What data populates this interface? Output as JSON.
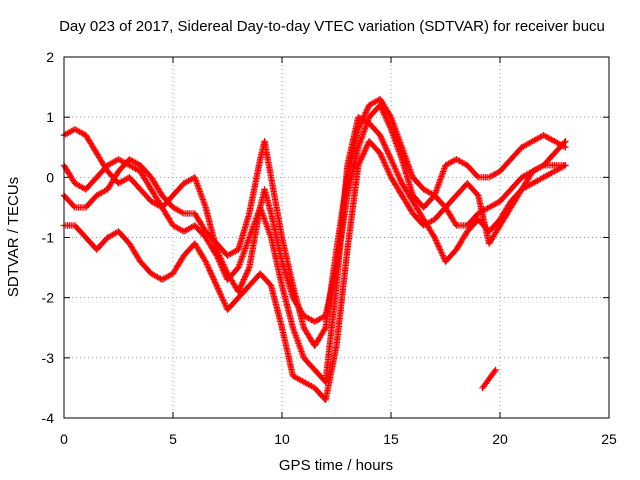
{
  "chart_data": {
    "type": "scatter",
    "title": "Day 023 of 2017, Sidereal Day-to-day VTEC variation (SDTVAR) for receiver bucu",
    "xlabel": "GPS time / hours",
    "ylabel": "SDTVAR / TECUs",
    "xlim": [
      0,
      25
    ],
    "ylim": [
      -4,
      2
    ],
    "xticks": [
      "0",
      "5",
      "10",
      "15",
      "20",
      "25"
    ],
    "yticks": [
      "-4",
      "-3",
      "-2",
      "-1",
      "0",
      "1",
      "2"
    ],
    "grid": true,
    "marker": "plus",
    "colors": {
      "series": "#ff0000",
      "grid": "#a0a0a0",
      "axis": "#000000"
    },
    "series": [
      {
        "values": [
          [
            0,
            0.7
          ],
          [
            0.5,
            0.8
          ],
          [
            1,
            0.7
          ],
          [
            1.5,
            0.4
          ],
          [
            2,
            0.1
          ],
          [
            2.5,
            -0.1
          ],
          [
            3,
            0.0
          ],
          [
            3.5,
            -0.2
          ],
          [
            4,
            -0.4
          ],
          [
            4.5,
            -0.5
          ],
          [
            5,
            -0.3
          ],
          [
            5.5,
            -0.1
          ],
          [
            6,
            0.0
          ],
          [
            6.5,
            -0.5
          ],
          [
            7,
            -1.2
          ],
          [
            7.5,
            -1.6
          ],
          [
            8,
            -1.9
          ],
          [
            8.5,
            -1.5
          ],
          [
            9,
            -0.5
          ],
          [
            9.2,
            -0.2
          ],
          [
            9.5,
            -0.6
          ],
          [
            10,
            -1.4
          ],
          [
            10.5,
            -2.0
          ],
          [
            11,
            -2.3
          ],
          [
            11.5,
            -2.4
          ],
          [
            12,
            -2.3
          ],
          [
            12.5,
            -1.5
          ],
          [
            13,
            -0.3
          ],
          [
            13.5,
            0.5
          ],
          [
            14,
            1.0
          ],
          [
            14.5,
            1.2
          ],
          [
            15,
            0.8
          ],
          [
            15.5,
            0.3
          ],
          [
            16,
            -0.3
          ],
          [
            16.5,
            -0.5
          ],
          [
            17,
            -0.3
          ],
          [
            17.5,
            0.2
          ],
          [
            18,
            0.3
          ],
          [
            18.5,
            0.2
          ],
          [
            19,
            0.0
          ],
          [
            19.5,
            0.0
          ],
          [
            20,
            0.1
          ],
          [
            20.5,
            0.3
          ],
          [
            21,
            0.5
          ],
          [
            21.5,
            0.6
          ],
          [
            22,
            0.7
          ],
          [
            22.5,
            0.6
          ],
          [
            23,
            0.5
          ]
        ]
      },
      {
        "values": [
          [
            0,
            -0.3
          ],
          [
            0.5,
            -0.5
          ],
          [
            1,
            -0.5
          ],
          [
            1.5,
            -0.3
          ],
          [
            2,
            -0.2
          ],
          [
            2.5,
            0.1
          ],
          [
            3,
            0.3
          ],
          [
            3.5,
            0.2
          ],
          [
            4,
            0.0
          ],
          [
            4.5,
            -0.3
          ],
          [
            5,
            -0.5
          ],
          [
            5.5,
            -0.6
          ],
          [
            6,
            -0.6
          ],
          [
            6.5,
            -0.9
          ],
          [
            7,
            -1.1
          ],
          [
            7.5,
            -1.3
          ],
          [
            8,
            -1.2
          ],
          [
            8.5,
            -0.6
          ],
          [
            9,
            0.3
          ],
          [
            9.2,
            0.6
          ],
          [
            9.5,
            0.0
          ],
          [
            10,
            -1.0
          ],
          [
            10.5,
            -1.8
          ],
          [
            11,
            -2.5
          ],
          [
            11.5,
            -2.8
          ],
          [
            12,
            -2.5
          ],
          [
            12.5,
            -1.2
          ],
          [
            13,
            0.0
          ],
          [
            13.5,
            0.8
          ],
          [
            14,
            1.2
          ],
          [
            14.5,
            1.3
          ],
          [
            15,
            1.0
          ],
          [
            15.5,
            0.5
          ],
          [
            16,
            0.0
          ],
          [
            16.5,
            -0.2
          ],
          [
            17,
            -0.3
          ],
          [
            17.5,
            -0.5
          ],
          [
            18,
            -0.8
          ],
          [
            18.5,
            -0.8
          ],
          [
            19,
            -0.6
          ],
          [
            19.5,
            -0.5
          ],
          [
            20,
            -0.4
          ],
          [
            20.5,
            -0.2
          ],
          [
            21,
            0.0
          ],
          [
            21.5,
            0.1
          ],
          [
            22,
            0.2
          ],
          [
            22.5,
            0.2
          ],
          [
            23,
            0.2
          ]
        ]
      },
      {
        "values": [
          [
            0,
            0.2
          ],
          [
            0.5,
            -0.1
          ],
          [
            1,
            -0.2
          ],
          [
            1.5,
            0.0
          ],
          [
            2,
            0.2
          ],
          [
            2.5,
            0.3
          ],
          [
            3,
            0.2
          ],
          [
            3.5,
            0.1
          ],
          [
            4,
            -0.2
          ],
          [
            4.5,
            -0.5
          ],
          [
            5,
            -0.8
          ],
          [
            5.5,
            -0.9
          ],
          [
            6,
            -0.8
          ],
          [
            6.5,
            -1.0
          ],
          [
            7,
            -1.3
          ],
          [
            7.5,
            -1.7
          ],
          [
            8,
            -1.5
          ],
          [
            8.5,
            -1.0
          ],
          [
            9,
            -0.5
          ],
          [
            9.5,
            -1.0
          ],
          [
            10,
            -1.8
          ],
          [
            10.5,
            -2.5
          ],
          [
            11,
            -3.0
          ],
          [
            11.5,
            -3.2
          ],
          [
            12,
            -3.4
          ],
          [
            12.5,
            -1.8
          ],
          [
            13,
            0.2
          ],
          [
            13.5,
            1.0
          ],
          [
            14,
            0.9
          ],
          [
            14.5,
            0.7
          ],
          [
            15,
            0.3
          ],
          [
            15.5,
            -0.1
          ],
          [
            16,
            -0.4
          ],
          [
            16.5,
            -0.7
          ],
          [
            17,
            -1.0
          ],
          [
            17.5,
            -1.4
          ],
          [
            18,
            -1.2
          ],
          [
            18.5,
            -0.9
          ],
          [
            19,
            -0.7
          ],
          [
            19.5,
            -0.9
          ],
          [
            20,
            -0.7
          ],
          [
            20.5,
            -0.4
          ],
          [
            21,
            -0.2
          ],
          [
            21.5,
            -0.1
          ],
          [
            22,
            0.0
          ],
          [
            22.5,
            0.1
          ],
          [
            23,
            0.2
          ]
        ]
      },
      {
        "values": [
          [
            0,
            -0.8
          ],
          [
            0.5,
            -0.8
          ],
          [
            1,
            -1.0
          ],
          [
            1.5,
            -1.2
          ],
          [
            2,
            -1.0
          ],
          [
            2.5,
            -0.9
          ],
          [
            3,
            -1.1
          ],
          [
            3.5,
            -1.4
          ],
          [
            4,
            -1.6
          ],
          [
            4.5,
            -1.7
          ],
          [
            5,
            -1.6
          ],
          [
            5.5,
            -1.3
          ],
          [
            6,
            -1.1
          ],
          [
            6.5,
            -1.4
          ],
          [
            7,
            -1.8
          ],
          [
            7.5,
            -2.2
          ],
          [
            8,
            -2.0
          ],
          [
            8.5,
            -1.8
          ],
          [
            9,
            -1.6
          ],
          [
            9.5,
            -1.8
          ],
          [
            10,
            -2.5
          ],
          [
            10.5,
            -3.3
          ],
          [
            11,
            -3.4
          ],
          [
            11.5,
            -3.5
          ],
          [
            12,
            -3.7
          ],
          [
            12.5,
            -2.8
          ],
          [
            13,
            -1.2
          ],
          [
            13.5,
            0.2
          ],
          [
            14,
            0.6
          ],
          [
            14.5,
            0.4
          ],
          [
            15,
            0.0
          ],
          [
            15.5,
            -0.3
          ],
          [
            16,
            -0.6
          ],
          [
            16.5,
            -0.8
          ],
          [
            17,
            -0.7
          ],
          [
            17.5,
            -0.5
          ],
          [
            18,
            -0.3
          ],
          [
            18.5,
            -0.1
          ],
          [
            19,
            -0.3
          ],
          [
            19.5,
            -1.1
          ],
          [
            20,
            -0.8
          ],
          [
            20.5,
            -0.5
          ],
          [
            21,
            -0.2
          ],
          [
            21.5,
            0.1
          ],
          [
            22,
            0.2
          ],
          [
            22.5,
            0.4
          ],
          [
            23,
            0.6
          ]
        ]
      },
      {
        "values": [
          [
            19.2,
            -3.5
          ],
          [
            19.4,
            -3.4
          ],
          [
            19.6,
            -3.3
          ],
          [
            19.8,
            -3.2
          ]
        ]
      }
    ]
  }
}
